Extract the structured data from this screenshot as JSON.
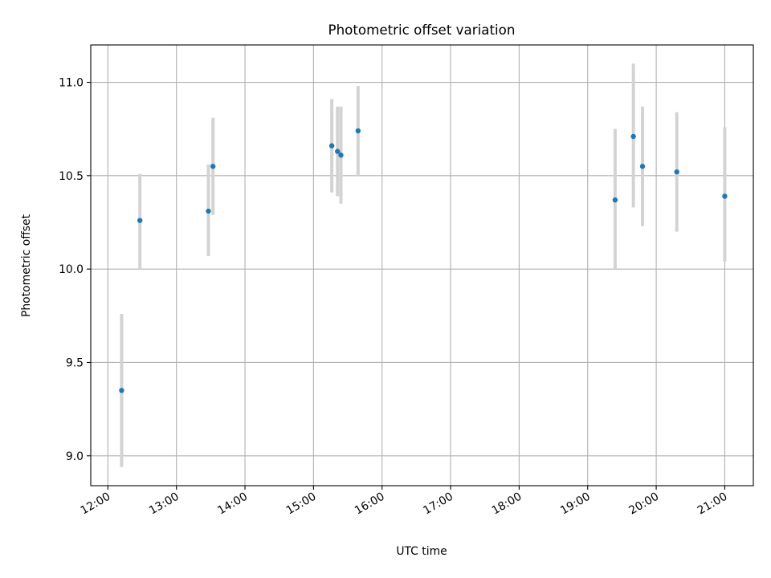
{
  "chart_data": {
    "type": "scatter",
    "title": "Photometric offset variation",
    "xlabel": "UTC time",
    "ylabel": "Photometric offset",
    "x_ticks": [
      "12:00",
      "13:00",
      "14:00",
      "15:00",
      "16:00",
      "17:00",
      "18:00",
      "19:00",
      "20:00",
      "21:00"
    ],
    "y_ticks": [
      "9.0",
      "9.5",
      "10.0",
      "10.5",
      "11.0"
    ],
    "xlim": [
      "11:45",
      "21:25"
    ],
    "ylim": [
      8.84,
      11.2
    ],
    "grid": true,
    "colors": {
      "points": "#1f77b4",
      "errorbars": "#d3d3d3",
      "grid": "#b0b0b0"
    },
    "points": [
      {
        "x": "12:12",
        "y": 9.35,
        "ylow": 8.94,
        "yhigh": 9.76
      },
      {
        "x": "12:28",
        "y": 10.26,
        "ylow": 10.0,
        "yhigh": 10.51
      },
      {
        "x": "13:28",
        "y": 10.31,
        "ylow": 10.07,
        "yhigh": 10.56
      },
      {
        "x": "13:32",
        "y": 10.55,
        "ylow": 10.29,
        "yhigh": 10.81
      },
      {
        "x": "15:16",
        "y": 10.66,
        "ylow": 10.41,
        "yhigh": 10.91
      },
      {
        "x": "15:21",
        "y": 10.63,
        "ylow": 10.39,
        "yhigh": 10.87
      },
      {
        "x": "15:24",
        "y": 10.61,
        "ylow": 10.35,
        "yhigh": 10.87
      },
      {
        "x": "15:39",
        "y": 10.74,
        "ylow": 10.5,
        "yhigh": 10.98
      },
      {
        "x": "19:24",
        "y": 10.37,
        "ylow": 10.0,
        "yhigh": 10.75
      },
      {
        "x": "19:40",
        "y": 10.71,
        "ylow": 10.33,
        "yhigh": 11.1
      },
      {
        "x": "19:48",
        "y": 10.55,
        "ylow": 10.23,
        "yhigh": 10.87
      },
      {
        "x": "20:18",
        "y": 10.52,
        "ylow": 10.2,
        "yhigh": 10.84
      },
      {
        "x": "21:00",
        "y": 10.39,
        "ylow": 10.04,
        "yhigh": 10.76
      }
    ]
  }
}
